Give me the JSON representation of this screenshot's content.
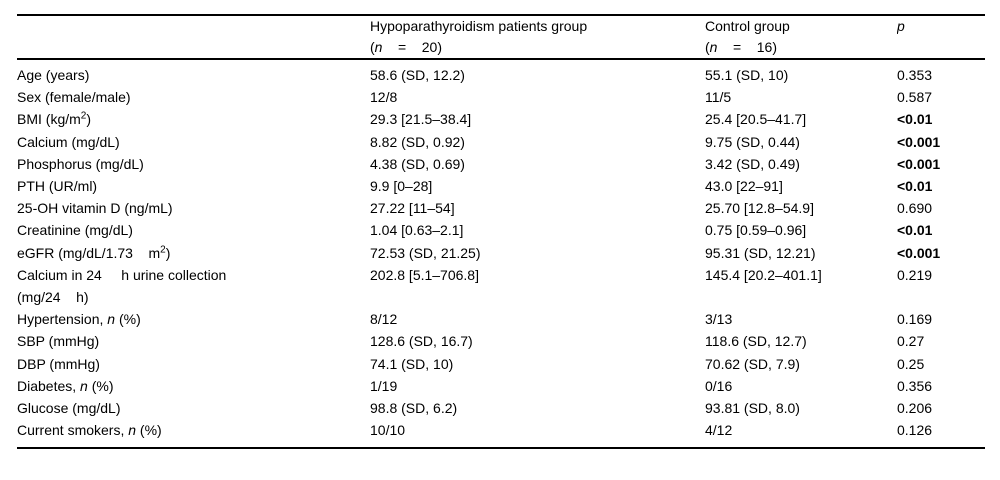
{
  "colors": {
    "background": "#ffffff",
    "text": "#000000",
    "rule": "#000000"
  },
  "table": {
    "header": [
      {
        "label_html": ""
      },
      {
        "label_html": "Hypoparathyroidism patients group<br>(<i>n</i>&nbsp;&nbsp;&nbsp;&nbsp;=&nbsp;&nbsp;&nbsp;&nbsp;20)"
      },
      {
        "label_html": "Control group<br>(<i>n</i>&nbsp;&nbsp;&nbsp;&nbsp;=&nbsp;&nbsp;&nbsp;&nbsp;16)"
      },
      {
        "label_html": "<i>p</i>"
      }
    ],
    "rows": [
      {
        "label_html": "Age (years)",
        "group1": "58.6 (SD, 12.2)",
        "group2": "55.1 (SD, 10)",
        "p": "0.353",
        "p_bold": false
      },
      {
        "label_html": "Sex (female/male)",
        "group1": "12/8",
        "group2": "11/5",
        "p": "0.587",
        "p_bold": false
      },
      {
        "label_html": "BMI (kg/m<sup>2</sup>)",
        "group1": "29.3 [21.5–38.4]",
        "group2": "25.4 [20.5–41.7]",
        "p": "<0.01",
        "p_bold": true
      },
      {
        "label_html": "Calcium (mg/dL)",
        "group1": "8.82 (SD, 0.92)",
        "group2": "9.75 (SD, 0.44)",
        "p": "<0.001",
        "p_bold": true
      },
      {
        "label_html": "Phosphorus (mg/dL)",
        "group1": "4.38 (SD, 0.69)",
        "group2": "3.42 (SD, 0.49)",
        "p": "<0.001",
        "p_bold": true
      },
      {
        "label_html": "PTH (UR/ml)",
        "group1": "9.9 [0–28]",
        "group2": "43.0 [22–91]",
        "p": "<0.01",
        "p_bold": true
      },
      {
        "label_html": "25-OH vitamin D (ng/mL)",
        "group1": "27.22 [11–54]",
        "group2": "25.70 [12.8–54.9]",
        "p": "0.690",
        "p_bold": false
      },
      {
        "label_html": "Creatinine (mg/dL)",
        "group1": "1.04 [0.63–2.1]",
        "group2": "0.75 [0.59–0.96]",
        "p": "<0.01",
        "p_bold": true
      },
      {
        "label_html": "eGFR (mg/dL/1.73&nbsp;&nbsp;&nbsp;&nbsp;m<sup>2</sup>)",
        "group1": "72.53 (SD, 21.25)",
        "group2": "95.31 (SD, 12.21)",
        "p": "<0.001",
        "p_bold": true
      },
      {
        "label_html": "Calcium in 24&nbsp;&nbsp;&nbsp;&nbsp;&nbsp;h urine collection<br>(mg/24&nbsp;&nbsp;&nbsp;&nbsp;h)",
        "group1": "202.8 [5.1–706.8]",
        "group2": "145.4 [20.2–401.1]",
        "p": "0.219",
        "p_bold": false
      },
      {
        "label_html": "Hypertension, <i>n</i> (%)",
        "group1": "8/12",
        "group2": "3/13",
        "p": "0.169",
        "p_bold": false
      },
      {
        "label_html": "SBP (mmHg)",
        "group1": "128.6 (SD, 16.7)",
        "group2": "118.6 (SD, 12.7)",
        "p": "0.27",
        "p_bold": false
      },
      {
        "label_html": "DBP (mmHg)",
        "group1": "74.1 (SD, 10)",
        "group2": "70.62 (SD, 7.9)",
        "p": "0.25",
        "p_bold": false
      },
      {
        "label_html": "Diabetes, <i>n</i> (%)",
        "group1": "1/19",
        "group2": "0/16",
        "p": "0.356",
        "p_bold": false
      },
      {
        "label_html": "Glucose (mg/dL)",
        "group1": "98.8 (SD, 6.2)",
        "group2": "93.81 (SD, 8.0)",
        "p": "0.206",
        "p_bold": false
      },
      {
        "label_html": "Current smokers, <i>n</i> (%)",
        "group1": "10/10",
        "group2": "4/12",
        "p": "0.126",
        "p_bold": false
      }
    ]
  }
}
